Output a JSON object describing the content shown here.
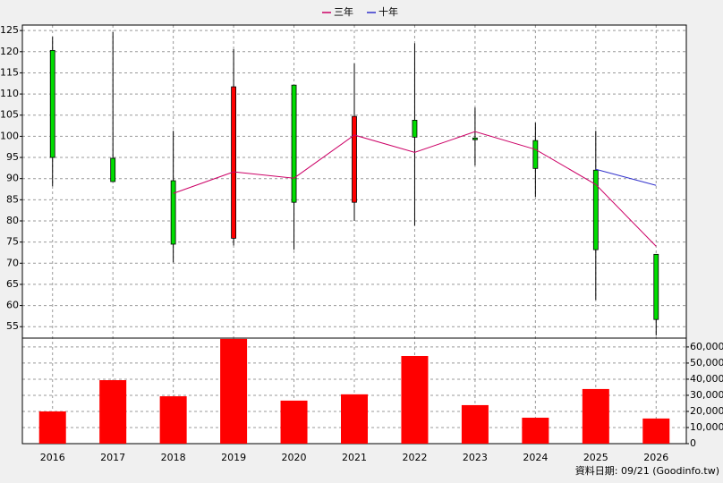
{
  "chart_data": {
    "type": "candlestick",
    "categories": [
      "2016",
      "2017",
      "2018",
      "2019",
      "2020",
      "2021",
      "2022",
      "2023",
      "2024",
      "2025",
      "2026"
    ],
    "open": [
      120.3,
      94.8,
      89.5,
      75.9,
      112.1,
      84.4,
      103.8,
      99.6,
      99.0,
      92.0,
      72.1
    ],
    "high": [
      123.5,
      124.6,
      101.3,
      120.6,
      112.1,
      117.2,
      122.0,
      106.8,
      103.2,
      101.3,
      72.1
    ],
    "low": [
      88.2,
      89.3,
      70.2,
      74.2,
      73.2,
      80.0,
      78.9,
      93.1,
      85.7,
      61.3,
      52.9
    ],
    "close": [
      95.0,
      89.3,
      74.5,
      111.7,
      84.4,
      104.7,
      99.8,
      99.2,
      92.4,
      73.2,
      56.7
    ],
    "up_color": "#ff0000",
    "down_color": "#00dd00",
    "series": [
      {
        "name": "三年",
        "color": "#cc0066",
        "values": [
          null,
          null,
          86.5,
          91.6,
          90.1,
          100.3,
          96.2,
          101.1,
          96.9,
          88.6,
          74.0
        ]
      },
      {
        "name": "十年",
        "color": "#3333cc",
        "values": [
          null,
          null,
          null,
          null,
          null,
          null,
          null,
          null,
          null,
          92.2,
          88.4
        ]
      }
    ],
    "volume": {
      "color": "#ff0000",
      "values": [
        20000,
        39400,
        29400,
        65000,
        26700,
        30600,
        54400,
        23900,
        16100,
        33900,
        15600
      ]
    },
    "ylim": [
      52.3,
      126.3
    ],
    "yticks": [
      55,
      60,
      65,
      70,
      75,
      80,
      85,
      90,
      95,
      100,
      105,
      110,
      115,
      120,
      125
    ],
    "y2lim": [
      0,
      65500
    ],
    "y2ticks": [
      0,
      {
        "value": 10000,
        "label": "10,000"
      },
      {
        "value": 20000,
        "label": "20,000"
      },
      {
        "value": 30000,
        "label": "30,000"
      },
      {
        "value": 40000,
        "label": "40,000"
      },
      {
        "value": 50000,
        "label": "50,000"
      },
      {
        "value": 60000,
        "label": "60,000"
      }
    ],
    "grid": true,
    "footnote": "資料日期: 09/21  (Goodinfo.tw)"
  }
}
